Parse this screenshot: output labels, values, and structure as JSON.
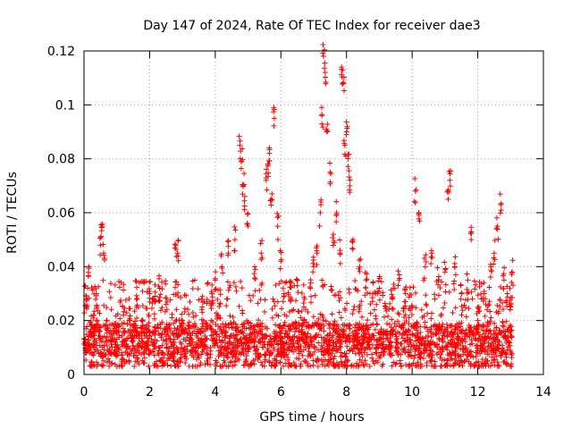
{
  "chart_data": {
    "type": "scatter",
    "title": "Day 147 of 2024, Rate Of TEC Index for receiver dae3",
    "xlabel": "GPS time / hours",
    "ylabel": "ROTI / TECUs",
    "xlim": [
      0,
      14
    ],
    "ylim": [
      0,
      0.12
    ],
    "x_ticks": [
      0,
      2,
      4,
      6,
      8,
      10,
      12,
      14
    ],
    "x_tick_labels": [
      "0",
      "2",
      "4",
      "6",
      "8",
      "10",
      "12",
      "14"
    ],
    "y_ticks": [
      0,
      0.02,
      0.04,
      0.06,
      0.08,
      0.1,
      0.12
    ],
    "y_tick_labels": [
      "0",
      "0.02",
      "0.04",
      "0.06",
      "0.08",
      "0.1",
      "0.12"
    ],
    "grid": true,
    "marker": "+",
    "series": [
      {
        "name": "ROTI",
        "color": "#ff0000",
        "x": [
          0.02,
          0.08,
          0.15,
          0.22,
          0.3,
          0.38,
          0.5,
          0.55,
          0.6,
          0.7,
          0.85,
          1.0,
          1.2,
          1.4,
          1.6,
          1.8,
          2.0,
          2.1,
          2.3,
          2.5,
          2.8,
          2.85,
          3.0,
          3.3,
          3.6,
          3.9,
          4.0,
          4.2,
          4.4,
          4.6,
          4.75,
          4.8,
          4.85,
          4.9,
          5.0,
          5.2,
          5.4,
          5.55,
          5.6,
          5.65,
          5.7,
          5.8,
          5.9,
          6.0,
          6.1,
          6.3,
          6.5,
          6.7,
          6.9,
          7.0,
          7.1,
          7.2,
          7.25,
          7.3,
          7.35,
          7.4,
          7.5,
          7.6,
          7.7,
          7.8,
          7.85,
          7.9,
          7.95,
          8.0,
          8.05,
          8.1,
          8.2,
          8.4,
          8.6,
          8.8,
          9.0,
          9.2,
          9.4,
          9.6,
          9.8,
          10.0,
          10.1,
          10.2,
          10.4,
          10.6,
          10.8,
          11.0,
          11.1,
          11.15,
          11.3,
          11.5,
          11.7,
          11.8,
          12.0,
          12.2,
          12.4,
          12.5,
          12.6,
          12.7,
          12.8,
          12.9,
          13.0,
          13.05
        ],
        "y": [
          0.012,
          0.025,
          0.04,
          0.018,
          0.022,
          0.03,
          0.048,
          0.055,
          0.045,
          0.02,
          0.015,
          0.018,
          0.022,
          0.02,
          0.025,
          0.017,
          0.03,
          0.028,
          0.032,
          0.026,
          0.048,
          0.045,
          0.02,
          0.018,
          0.025,
          0.03,
          0.035,
          0.04,
          0.045,
          0.05,
          0.085,
          0.079,
          0.07,
          0.066,
          0.055,
          0.04,
          0.045,
          0.072,
          0.078,
          0.082,
          0.065,
          0.095,
          0.055,
          0.042,
          0.03,
          0.028,
          0.035,
          0.025,
          0.032,
          0.04,
          0.045,
          0.06,
          0.096,
          0.118,
          0.112,
          0.09,
          0.075,
          0.052,
          0.06,
          0.045,
          0.114,
          0.108,
          0.085,
          0.09,
          0.08,
          0.07,
          0.05,
          0.04,
          0.035,
          0.03,
          0.032,
          0.025,
          0.028,
          0.035,
          0.03,
          0.025,
          0.068,
          0.06,
          0.04,
          0.045,
          0.035,
          0.038,
          0.065,
          0.072,
          0.04,
          0.03,
          0.035,
          0.05,
          0.02,
          0.03,
          0.04,
          0.045,
          0.055,
          0.063,
          0.035,
          0.03,
          0.025,
          0.038
        ]
      }
    ],
    "dense_band": {
      "x_range": [
        0,
        13.05
      ],
      "y_range": [
        0.003,
        0.035
      ],
      "median": 0.013
    }
  }
}
